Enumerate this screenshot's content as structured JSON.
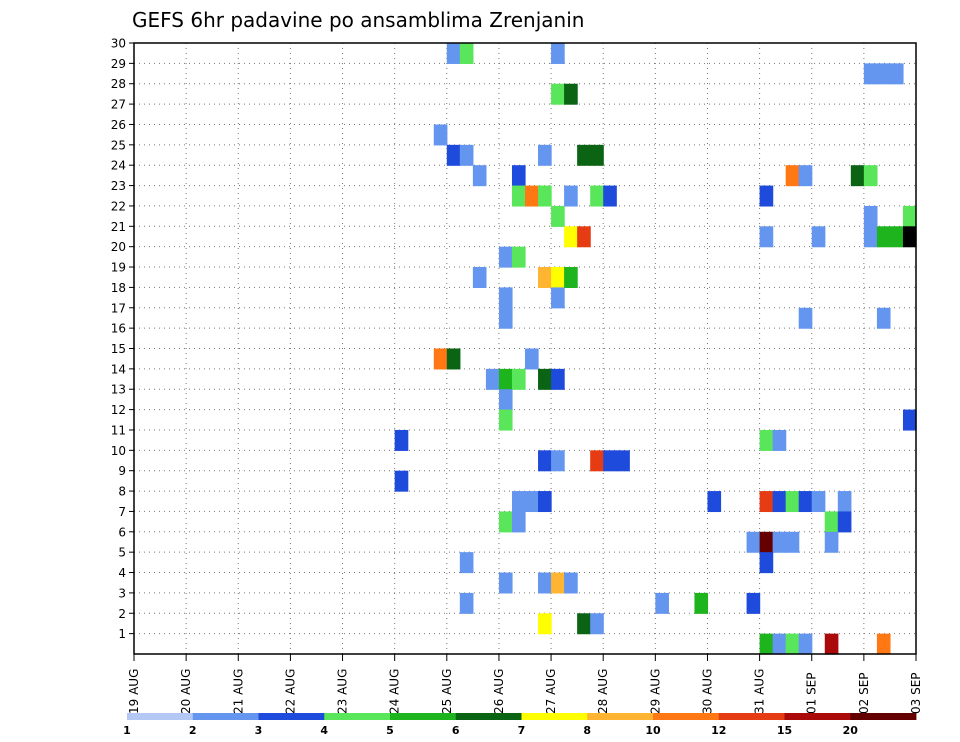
{
  "chart_data": {
    "type": "heatmap",
    "title": "GEFS 6hr padavine po ansamblima Zrenjanin",
    "xlabel": "",
    "ylabel": "",
    "x_tick_labels": [
      "19 AUG",
      "20 AUG",
      "21 AUG",
      "22 AUG",
      "23 AUG",
      "24 AUG",
      "25 AUG",
      "26 AUG",
      "27 AUG",
      "28 AUG",
      "29 AUG",
      "30 AUG",
      "31 AUG",
      "01 SEP",
      "02 SEP",
      "03 SEP"
    ],
    "x_unit": "6-hour step since 19 AUG 00 UTC",
    "xlim": [
      0,
      60
    ],
    "y_tick_labels": [
      "1",
      "2",
      "3",
      "4",
      "5",
      "6",
      "7",
      "8",
      "9",
      "10",
      "11",
      "12",
      "13",
      "14",
      "15",
      "16",
      "17",
      "18",
      "19",
      "20",
      "21",
      "22",
      "23",
      "24",
      "25",
      "26",
      "27",
      "28",
      "29",
      "30"
    ],
    "ylim": [
      0,
      30
    ],
    "grid": true,
    "colorbar": {
      "labels": [
        "1",
        "2",
        "3",
        "4",
        "5",
        "6",
        "7",
        "8",
        "10",
        "12",
        "15",
        "20"
      ],
      "colors": [
        "#b4c8f5",
        "#6496f0",
        "#1e4bdc",
        "#5ae65a",
        "#1eb41e",
        "#0a6414",
        "#ffff00",
        "#ffb432",
        "#ff7814",
        "#e63c14",
        "#aa0a0a",
        "#640000"
      ]
    },
    "cells": [
      {
        "x": 24,
        "y": 29,
        "c": 1
      },
      {
        "x": 25,
        "y": 29,
        "c": 3
      },
      {
        "x": 32,
        "y": 29,
        "c": 1
      },
      {
        "x": 56,
        "y": 28,
        "c": 1
      },
      {
        "x": 57,
        "y": 28,
        "c": 1
      },
      {
        "x": 58,
        "y": 28,
        "c": 1
      },
      {
        "x": 32,
        "y": 27,
        "c": 3
      },
      {
        "x": 33,
        "y": 27,
        "c": 5
      },
      {
        "x": 23,
        "y": 25,
        "c": 1
      },
      {
        "x": 24,
        "y": 24,
        "c": 2
      },
      {
        "x": 25,
        "y": 24,
        "c": 1
      },
      {
        "x": 31,
        "y": 24,
        "c": 1
      },
      {
        "x": 34,
        "y": 24,
        "c": 5
      },
      {
        "x": 35,
        "y": 24,
        "c": 5
      },
      {
        "x": 26,
        "y": 23,
        "c": 1
      },
      {
        "x": 29,
        "y": 23,
        "c": 2
      },
      {
        "x": 50,
        "y": 23,
        "c": 8
      },
      {
        "x": 51,
        "y": 23,
        "c": 1
      },
      {
        "x": 55,
        "y": 23,
        "c": 5
      },
      {
        "x": 56,
        "y": 23,
        "c": 3
      },
      {
        "x": 29,
        "y": 22,
        "c": 3
      },
      {
        "x": 30,
        "y": 22,
        "c": 8
      },
      {
        "x": 31,
        "y": 22,
        "c": 3
      },
      {
        "x": 33,
        "y": 22,
        "c": 1
      },
      {
        "x": 35,
        "y": 22,
        "c": 3
      },
      {
        "x": 36,
        "y": 22,
        "c": 2
      },
      {
        "x": 48,
        "y": 22,
        "c": 2
      },
      {
        "x": 32,
        "y": 21,
        "c": 3
      },
      {
        "x": 56,
        "y": 21,
        "c": 1
      },
      {
        "x": 59,
        "y": 21,
        "c": 3
      },
      {
        "x": 33,
        "y": 20,
        "c": 6
      },
      {
        "x": 34,
        "y": 20,
        "c": 9
      },
      {
        "x": 48,
        "y": 20,
        "c": 1
      },
      {
        "x": 52,
        "y": 20,
        "c": 1
      },
      {
        "x": 56,
        "y": 20,
        "c": 1
      },
      {
        "x": 57,
        "y": 20,
        "c": 4
      },
      {
        "x": 58,
        "y": 20,
        "c": 4
      },
      {
        "x": 59,
        "y": 20,
        "c": 12
      },
      {
        "x": 28,
        "y": 19,
        "c": 1
      },
      {
        "x": 29,
        "y": 19,
        "c": 3
      },
      {
        "x": 26,
        "y": 18,
        "c": 1
      },
      {
        "x": 31,
        "y": 18,
        "c": 7
      },
      {
        "x": 32,
        "y": 18,
        "c": 6
      },
      {
        "x": 33,
        "y": 18,
        "c": 4
      },
      {
        "x": 28,
        "y": 17,
        "c": 1
      },
      {
        "x": 32,
        "y": 17,
        "c": 1
      },
      {
        "x": 28,
        "y": 16,
        "c": 1
      },
      {
        "x": 51,
        "y": 16,
        "c": 1
      },
      {
        "x": 57,
        "y": 16,
        "c": 1
      },
      {
        "x": 23,
        "y": 14,
        "c": 8
      },
      {
        "x": 24,
        "y": 14,
        "c": 5
      },
      {
        "x": 30,
        "y": 14,
        "c": 1
      },
      {
        "x": 27,
        "y": 13,
        "c": 1
      },
      {
        "x": 28,
        "y": 13,
        "c": 4
      },
      {
        "x": 29,
        "y": 13,
        "c": 3
      },
      {
        "x": 31,
        "y": 13,
        "c": 5
      },
      {
        "x": 32,
        "y": 13,
        "c": 2
      },
      {
        "x": 28,
        "y": 12,
        "c": 1
      },
      {
        "x": 28,
        "y": 11,
        "c": 3
      },
      {
        "x": 59,
        "y": 11,
        "c": 2
      },
      {
        "x": 20,
        "y": 10,
        "c": 2
      },
      {
        "x": 48,
        "y": 10,
        "c": 3
      },
      {
        "x": 49,
        "y": 10,
        "c": 1
      },
      {
        "x": 31,
        "y": 9,
        "c": 2
      },
      {
        "x": 32,
        "y": 9,
        "c": 1
      },
      {
        "x": 35,
        "y": 9,
        "c": 9
      },
      {
        "x": 36,
        "y": 9,
        "c": 2
      },
      {
        "x": 37,
        "y": 9,
        "c": 2
      },
      {
        "x": 20,
        "y": 8,
        "c": 2
      },
      {
        "x": 29,
        "y": 7,
        "c": 1
      },
      {
        "x": 30,
        "y": 7,
        "c": 1
      },
      {
        "x": 31,
        "y": 7,
        "c": 2
      },
      {
        "x": 44,
        "y": 7,
        "c": 2
      },
      {
        "x": 48,
        "y": 7,
        "c": 9
      },
      {
        "x": 49,
        "y": 7,
        "c": 2
      },
      {
        "x": 50,
        "y": 7,
        "c": 3
      },
      {
        "x": 51,
        "y": 7,
        "c": 2
      },
      {
        "x": 52,
        "y": 7,
        "c": 1
      },
      {
        "x": 54,
        "y": 7,
        "c": 1
      },
      {
        "x": 28,
        "y": 6,
        "c": 3
      },
      {
        "x": 29,
        "y": 6,
        "c": 1
      },
      {
        "x": 53,
        "y": 6,
        "c": 3
      },
      {
        "x": 54,
        "y": 6,
        "c": 2
      },
      {
        "x": 47,
        "y": 5,
        "c": 1
      },
      {
        "x": 48,
        "y": 5,
        "c": 11
      },
      {
        "x": 49,
        "y": 5,
        "c": 1
      },
      {
        "x": 50,
        "y": 5,
        "c": 1
      },
      {
        "x": 53,
        "y": 5,
        "c": 1
      },
      {
        "x": 25,
        "y": 4,
        "c": 1
      },
      {
        "x": 48,
        "y": 4,
        "c": 2
      },
      {
        "x": 28,
        "y": 3,
        "c": 1
      },
      {
        "x": 31,
        "y": 3,
        "c": 1
      },
      {
        "x": 32,
        "y": 3,
        "c": 7
      },
      {
        "x": 33,
        "y": 3,
        "c": 1
      },
      {
        "x": 25,
        "y": 2,
        "c": 1
      },
      {
        "x": 40,
        "y": 2,
        "c": 1
      },
      {
        "x": 43,
        "y": 2,
        "c": 4
      },
      {
        "x": 47,
        "y": 2,
        "c": 2
      },
      {
        "x": 31,
        "y": 1,
        "c": 6
      },
      {
        "x": 34,
        "y": 1,
        "c": 5
      },
      {
        "x": 35,
        "y": 1,
        "c": 1
      },
      {
        "x": 48,
        "y": 0,
        "c": 4
      },
      {
        "x": 49,
        "y": 0,
        "c": 1
      },
      {
        "x": 50,
        "y": 0,
        "c": 3
      },
      {
        "x": 51,
        "y": 0,
        "c": 1
      },
      {
        "x": 53,
        "y": 0,
        "c": 10
      },
      {
        "x": 57,
        "y": 0,
        "c": 8
      }
    ]
  }
}
